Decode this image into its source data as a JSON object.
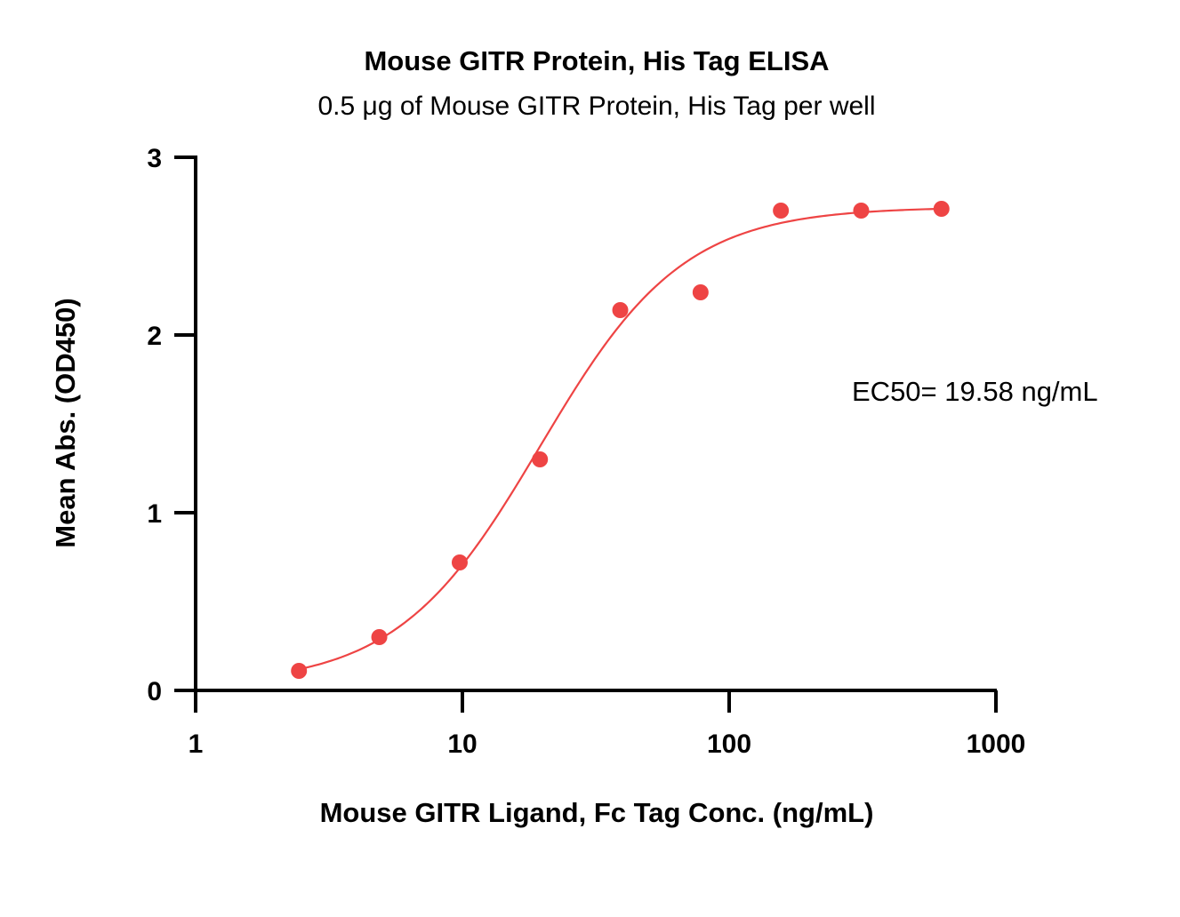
{
  "chart_data": {
    "type": "scatter",
    "title": "Mouse GITR Protein, His Tag ELISA",
    "subtitle": "0.5 μg of Mouse GITR Protein, His Tag per well",
    "xlabel": "Mouse GITR Ligand, Fc Tag Conc. (ng/mL)",
    "ylabel": "Mean Abs. (OD450)",
    "x_scale": "log",
    "xlim": [
      1,
      1000
    ],
    "ylim": [
      0,
      3
    ],
    "x_ticks": [
      1,
      10,
      100,
      1000
    ],
    "x_tick_labels": [
      "1",
      "10",
      "100",
      "1000"
    ],
    "y_ticks": [
      0,
      1,
      2,
      3
    ],
    "y_tick_labels": [
      "0",
      "1",
      "2",
      "3"
    ],
    "grid": false,
    "color": "#ee4444",
    "series": [
      {
        "x": [
          2.44,
          4.88,
          9.77,
          19.53,
          39.06,
          78.13,
          156.25,
          312.5,
          625
        ],
        "y": [
          0.11,
          0.3,
          0.72,
          1.3,
          2.14,
          2.24,
          2.7,
          2.7,
          2.71
        ]
      }
    ],
    "fit": {
      "model": "4PL",
      "bottom": 0.03,
      "top": 2.72,
      "ec50": 19.58,
      "hill": 1.62
    },
    "annotation": "EC50= 19.58 ng/mL"
  }
}
